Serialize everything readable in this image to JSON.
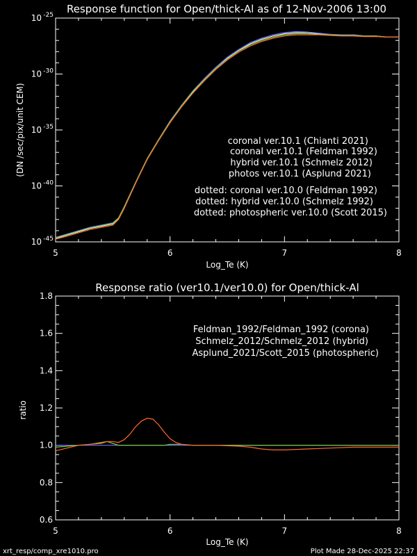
{
  "colors": {
    "white": "#ffffff",
    "blue": "#6f6fff",
    "green": "#7ccf3c",
    "orange": "#ff6a2a",
    "background": "#000000"
  },
  "chart_data": [
    {
      "type": "line",
      "title": "Response function for Open/thick-Al as of 12-Nov-2006 13:00",
      "xlabel": "Log_Te (K)",
      "ylabel": "(DN /sec/pix/unit CEM)",
      "xlim": [
        5,
        8
      ],
      "ylim_log10": [
        -45,
        -25
      ],
      "yscale": "log",
      "xticks": [
        "5",
        "6",
        "7",
        "8"
      ],
      "yticks": [
        {
          "base": "10",
          "exp": "-25",
          "value": -25
        },
        {
          "base": "10",
          "exp": "-30",
          "value": -30
        },
        {
          "base": "10",
          "exp": "-35",
          "value": -35
        },
        {
          "base": "10",
          "exp": "-40",
          "value": -40
        },
        {
          "base": "10",
          "exp": "-45",
          "value": -45
        }
      ],
      "legend": [
        {
          "text": "coronal ver.10.1 (Chianti 2021)",
          "color": "#ffffff"
        },
        {
          "text": "coronal ver.10.1 (Feldman 1992)",
          "color": "#6f6fff"
        },
        {
          "text": "hybrid ver.10.1 (Schmelz 2012)",
          "color": "#7ccf3c"
        },
        {
          "text": "photos ver.10.1 (Asplund 2021)",
          "color": "#ff6a2a"
        },
        {
          "text": "dotted: coronal ver.10.0 (Feldman 1992)",
          "color": "#6f6fff"
        },
        {
          "text": "dotted: hybrid ver.10.0 (Schmelz 1992)",
          "color": "#7ccf3c"
        },
        {
          "text": "dotted: photospheric ver.10.0 (Scott 2015)",
          "color": "#ff6a2a"
        }
      ],
      "x": [
        5.0,
        5.1,
        5.2,
        5.3,
        5.4,
        5.5,
        5.55,
        5.6,
        5.7,
        5.8,
        5.9,
        6.0,
        6.1,
        6.2,
        6.3,
        6.4,
        6.5,
        6.6,
        6.7,
        6.8,
        6.9,
        7.0,
        7.1,
        7.2,
        7.3,
        7.4,
        7.5,
        7.6,
        7.7,
        7.8,
        7.9,
        8.0
      ],
      "series": [
        {
          "color": "#ffffff",
          "log10_values": [
            -44.7,
            -44.4,
            -44.1,
            -43.8,
            -43.6,
            -43.4,
            -42.9,
            -41.9,
            -39.7,
            -37.6,
            -35.9,
            -34.3,
            -32.9,
            -31.6,
            -30.5,
            -29.5,
            -28.6,
            -27.9,
            -27.3,
            -26.9,
            -26.6,
            -26.4,
            -26.3,
            -26.3,
            -26.4,
            -26.5,
            -26.5,
            -26.5,
            -26.6,
            -26.6,
            -26.7,
            -26.7
          ]
        },
        {
          "color": "#6f6fff",
          "log10_values": [
            -44.6,
            -44.3,
            -44.0,
            -43.7,
            -43.5,
            -43.3,
            -42.85,
            -41.85,
            -39.65,
            -37.55,
            -35.85,
            -34.2,
            -32.8,
            -31.5,
            -30.4,
            -29.4,
            -28.5,
            -27.8,
            -27.2,
            -26.8,
            -26.5,
            -26.3,
            -26.2,
            -26.25,
            -26.35,
            -26.45,
            -26.5,
            -26.5,
            -26.6,
            -26.6,
            -26.7,
            -26.7
          ]
        },
        {
          "color": "#7ccf3c",
          "log10_values": [
            -44.65,
            -44.35,
            -44.05,
            -43.75,
            -43.55,
            -43.35,
            -42.87,
            -41.87,
            -39.67,
            -37.57,
            -35.87,
            -34.25,
            -32.85,
            -31.55,
            -30.5,
            -29.5,
            -28.65,
            -27.95,
            -27.4,
            -27.0,
            -26.7,
            -26.5,
            -26.4,
            -26.4,
            -26.45,
            -26.5,
            -26.55,
            -26.55,
            -26.6,
            -26.6,
            -26.7,
            -26.7
          ]
        },
        {
          "color": "#ff6a2a",
          "log10_values": [
            -44.75,
            -44.5,
            -44.2,
            -43.9,
            -43.7,
            -43.5,
            -43.0,
            -42.0,
            -39.75,
            -37.65,
            -35.95,
            -34.35,
            -32.95,
            -31.7,
            -30.6,
            -29.6,
            -28.75,
            -28.05,
            -27.5,
            -27.1,
            -26.8,
            -26.6,
            -26.5,
            -26.5,
            -26.5,
            -26.55,
            -26.6,
            -26.6,
            -26.65,
            -26.65,
            -26.7,
            -26.7
          ]
        }
      ]
    },
    {
      "type": "line",
      "title": "Response ratio (ver10.1/ver10.0) for Open/thick-Al",
      "xlabel": "Log_Te (K)",
      "ylabel": "ratio",
      "xlim": [
        5,
        8
      ],
      "ylim": [
        0.6,
        1.8
      ],
      "xticks": [
        "5",
        "6",
        "7",
        "8"
      ],
      "yticks": [
        "0.6",
        "0.8",
        "1.0",
        "1.2",
        "1.4",
        "1.6",
        "1.8"
      ],
      "legend": [
        {
          "text": "Feldman_1992/Feldman_1992 (corona)",
          "color": "#6f6fff"
        },
        {
          "text": "Schmelz_2012/Schmelz_2012 (hybrid)",
          "color": "#7ccf3c"
        },
        {
          "text": "Asplund_2021/Scott_2015 (photospheric)",
          "color": "#ff6a2a"
        }
      ],
      "x": [
        5.0,
        5.1,
        5.2,
        5.3,
        5.4,
        5.45,
        5.5,
        5.55,
        5.6,
        5.65,
        5.7,
        5.75,
        5.8,
        5.85,
        5.9,
        5.95,
        6.0,
        6.05,
        6.1,
        6.2,
        6.4,
        6.6,
        6.7,
        6.8,
        6.9,
        7.0,
        7.2,
        7.4,
        7.6,
        7.8,
        8.0
      ],
      "series": [
        {
          "color": "#6f6fff",
          "values": [
            1.0,
            1.0,
            1.0,
            1.0,
            1.0,
            1.0,
            1.0,
            1.0,
            1.0,
            1.0,
            1.0,
            1.0,
            1.0,
            1.0,
            1.0,
            1.0,
            1.0,
            1.0,
            1.0,
            1.0,
            1.0,
            1.0,
            1.0,
            1.0,
            1.0,
            1.0,
            1.0,
            1.0,
            1.0,
            1.0,
            1.0
          ]
        },
        {
          "color": "#7ccf3c",
          "values": [
            0.99,
            0.995,
            1.0,
            1.005,
            1.015,
            1.02,
            1.01,
            1.0,
            1.0,
            1.0,
            1.0,
            1.0,
            1.0,
            1.0,
            1.0,
            1.0,
            1.005,
            1.005,
            1.005,
            1.0,
            1.0,
            1.0,
            1.0,
            1.0,
            1.0,
            1.0,
            1.0,
            1.0,
            1.0,
            1.0,
            1.0
          ]
        },
        {
          "color": "#ff6a2a",
          "values": [
            0.97,
            0.985,
            1.0,
            1.005,
            1.01,
            1.02,
            1.02,
            1.015,
            1.03,
            1.06,
            1.1,
            1.13,
            1.145,
            1.14,
            1.11,
            1.07,
            1.035,
            1.015,
            1.005,
            1.0,
            1.0,
            0.995,
            0.99,
            0.98,
            0.975,
            0.975,
            0.98,
            0.985,
            0.99,
            0.99,
            0.99
          ]
        }
      ]
    }
  ],
  "footer": {
    "left": "xrt_resp/comp_xre1010.pro",
    "right": "Plot Made 28-Dec-2025 22:37"
  }
}
